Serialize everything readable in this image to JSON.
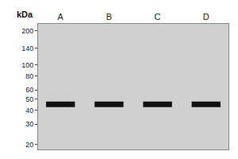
{
  "chart_data": {
    "type": "scatter",
    "categories": [
      "A",
      "B",
      "C",
      "D"
    ],
    "values": [
      45,
      45,
      45,
      45
    ],
    "color": "#111111",
    "marker": "band",
    "y_label": "kDa",
    "log": "y",
    "ylim": [
      18,
      230
    ],
    "yticks": [
      200,
      140,
      100,
      80,
      60,
      50,
      40,
      30,
      20
    ],
    "grid": false
  }
}
